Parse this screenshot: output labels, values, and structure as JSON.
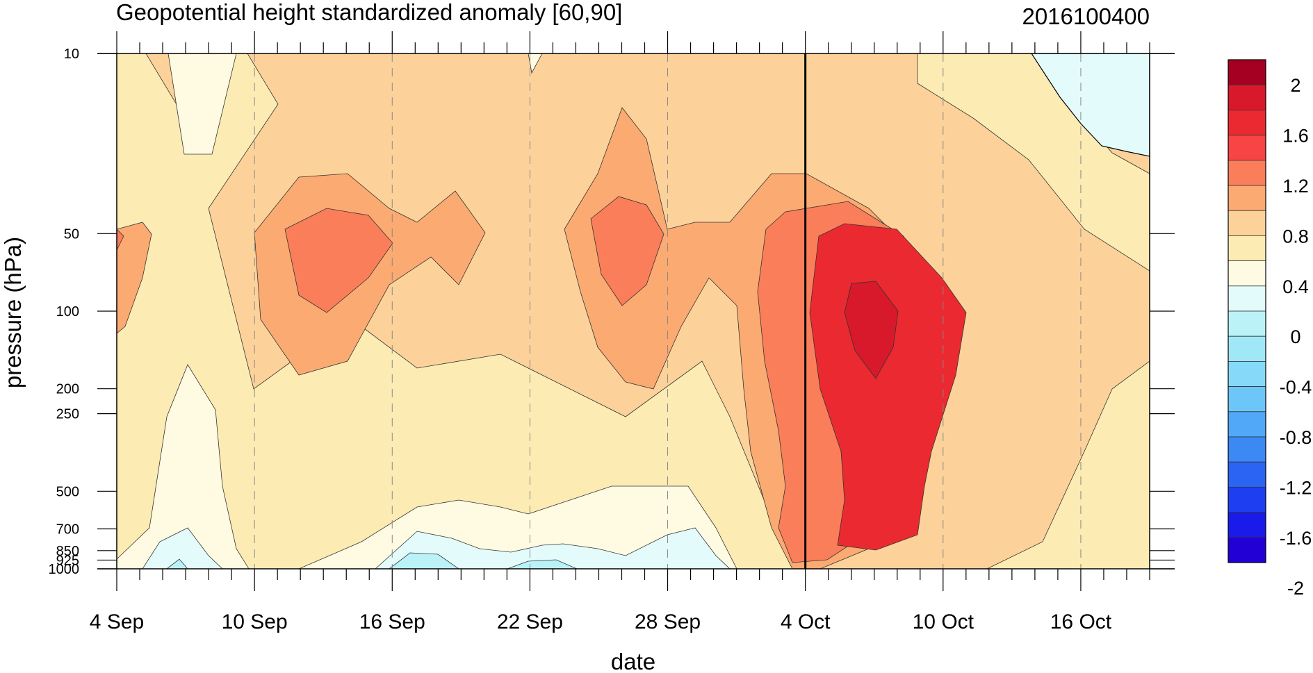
{
  "chart_data": {
    "type": "heatmap",
    "title": "Geopotential height standardized anomaly [60,90]",
    "subtitle": "2016100400",
    "xlabel": "date",
    "ylabel": "pressure (hPa)",
    "x_range": [
      "2016-09-04",
      "2016-10-19"
    ],
    "x_ticks": [
      "4 Sep",
      "10 Sep",
      "16 Sep",
      "22 Sep",
      "28 Sep",
      "4 Oct",
      "10 Oct",
      "16 Oct"
    ],
    "y_scale": "log",
    "y_range": [
      1000,
      10
    ],
    "y_ticks": [
      "10",
      "50",
      "100",
      "200",
      "250",
      "500",
      "700",
      "850",
      "925",
      "1000"
    ],
    "y_tick_values": [
      10,
      50,
      100,
      200,
      250,
      500,
      700,
      850,
      925,
      1000
    ],
    "current_date_line": "2016-10-04",
    "grid_vertical_dashed": true,
    "colorbar": {
      "position": "right",
      "labels": [
        "2",
        "1.6",
        "1.2",
        "0.8",
        "0.4",
        "0",
        "-0.4",
        "-0.8",
        "-1.2",
        "-1.6",
        "-2"
      ],
      "colors": [
        "#a50021",
        "#d7192b",
        "#ea2a30",
        "#f84444",
        "#fb7e5a",
        "#fbaa72",
        "#fdd29a",
        "#fdebb4",
        "#fffbe2",
        "#e4fbfb",
        "#baf2f8",
        "#a0e7f8",
        "#86d9f8",
        "#6dc6f8",
        "#51a8f8",
        "#3c88f5",
        "#2b63f3",
        "#1e3ff0",
        "#1a1aeb",
        "#2200d5"
      ]
    },
    "fields_summary": [
      {
        "feature": "positive anomaly maximum (>1.6)",
        "date": "2016-10-07",
        "pressure_hPa": [
          80,
          170
        ]
      },
      {
        "feature": "positive anomaly core (>1.2)",
        "date": "2016-10-07",
        "pressure_hPa": [
          55,
          800
        ]
      },
      {
        "feature": "local maximum (>0.8)",
        "date": "2016-09-13",
        "pressure_hPa": [
          50,
          100
        ]
      },
      {
        "feature": "local maximum (>0.8)",
        "date": "2016-09-26",
        "pressure_hPa": [
          40,
          90
        ]
      },
      {
        "feature": "negative anomaly (<0)",
        "date": "2016-10-18",
        "pressure_hPa": [
          10,
          30
        ]
      },
      {
        "feature": "near-zero / slightly negative",
        "date": "2016-09-06",
        "pressure_hPa": [
          850,
          1000
        ]
      },
      {
        "feature": "near-zero / slightly negative",
        "date": "2016-09-18",
        "pressure_hPa": [
          820,
          1000
        ]
      },
      {
        "feature": "near-zero / slightly negative",
        "date": "2016-09-28",
        "pressure_hPa": [
          840,
          1000
        ]
      }
    ]
  }
}
